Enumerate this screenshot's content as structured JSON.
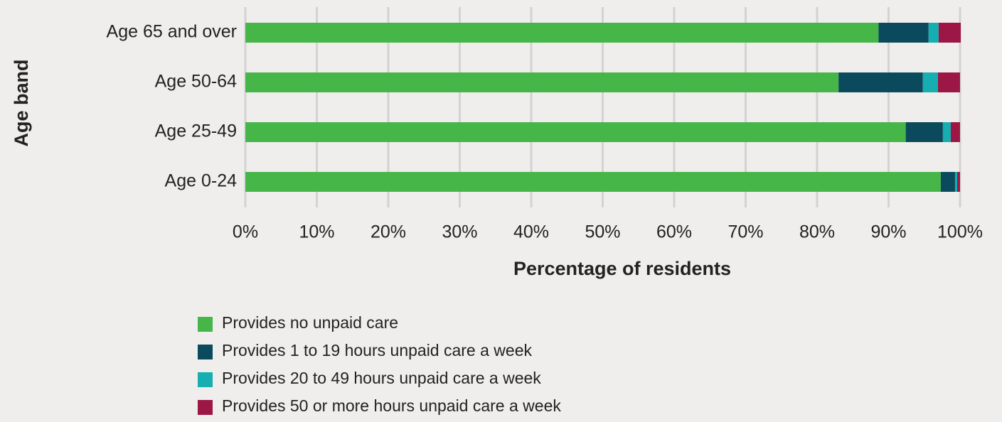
{
  "chart_data": {
    "type": "stacked_bar_horizontal",
    "x_label": "Percentage of residents",
    "y_label": "Age band",
    "categories": [
      "Age 65 and over",
      "Age 50-64",
      "Age 25-49",
      "Age 0-24"
    ],
    "series": [
      {
        "name": "Provides no unpaid care",
        "color": "#47b649",
        "values": [
          88.6,
          83.0,
          92.4,
          97.3
        ]
      },
      {
        "name": "Provides 1 to 19 hours unpaid care a week",
        "color": "#0b4a5c",
        "values": [
          7.0,
          11.8,
          5.2,
          2.0
        ]
      },
      {
        "name": "Provides 20 to 49 hours unpaid care a week",
        "color": "#15aeb1",
        "values": [
          1.4,
          2.1,
          1.1,
          0.3
        ]
      },
      {
        "name": "Provides 50 or  more hours unpaid care a week",
        "color": "#9c1746",
        "values": [
          3.1,
          3.1,
          1.3,
          0.4
        ]
      }
    ],
    "xlim": [
      0,
      100
    ],
    "xticks": [
      {
        "value": 0,
        "label": "0%"
      },
      {
        "value": 10,
        "label": "10%"
      },
      {
        "value": 20,
        "label": "20%"
      },
      {
        "value": 30,
        "label": "30%"
      },
      {
        "value": 40,
        "label": "40%"
      },
      {
        "value": 50,
        "label": "50%"
      },
      {
        "value": 60,
        "label": "60%"
      },
      {
        "value": 70,
        "label": "70%"
      },
      {
        "value": 80,
        "label": "80%"
      },
      {
        "value": 90,
        "label": "90%"
      },
      {
        "value": 100,
        "label": "100%"
      }
    ],
    "grid": true,
    "legend": "bottom"
  }
}
